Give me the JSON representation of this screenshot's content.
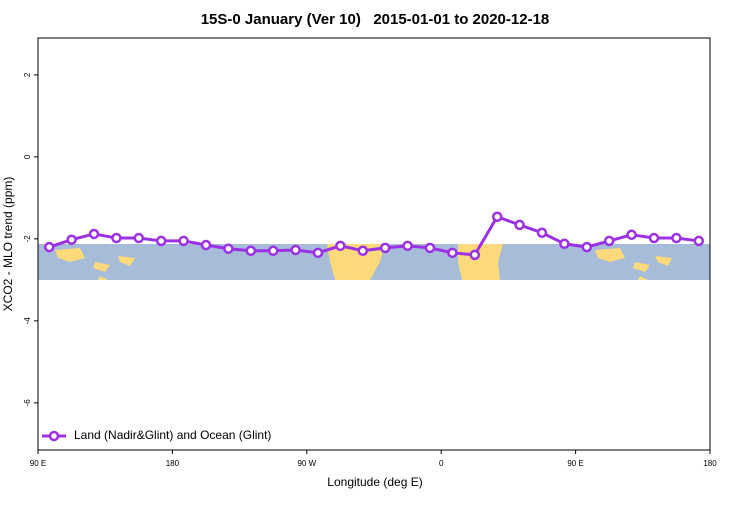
{
  "chart_data": {
    "type": "line",
    "title": "15S-0 January (Ver 10)   2015-01-01 to 2020-12-18",
    "x_label": "Longitude (deg E)",
    "y_label": "XCO2 - MLO trend (ppm)",
    "x": [
      97.5,
      112.5,
      127.5,
      142.5,
      157.5,
      172.5,
      187.5,
      202.5,
      217.5,
      232.5,
      247.5,
      262.5,
      277.5,
      292.5,
      307.5,
      322.5,
      337.5,
      352.5,
      367.5,
      382.5,
      397.5,
      412.5,
      427.5,
      442.5,
      457.5,
      472.5,
      487.5,
      502.5,
      517.5,
      532.5
    ],
    "series": [
      {
        "name": "Land (Nadir&Glint) and Ocean (Glint)",
        "color": "#9b30e6",
        "values": [
          -2.2,
          -2.02,
          -1.88,
          -1.98,
          -1.98,
          -2.05,
          -2.05,
          -2.15,
          -2.24,
          -2.29,
          -2.29,
          -2.27,
          -2.34,
          -2.17,
          -2.29,
          -2.22,
          -2.17,
          -2.22,
          -2.34,
          -2.39,
          -1.46,
          -1.66,
          -1.85,
          -2.12,
          -2.2,
          -2.05,
          -1.9,
          -1.98,
          -1.98,
          -2.05
        ]
      }
    ],
    "xlim": [
      90,
      540
    ],
    "xticks": [
      {
        "value": 90,
        "label": "90 E"
      },
      180,
      {
        "value": 270,
        "label": "90 W"
      },
      {
        "value": 360,
        "label": "0"
      },
      {
        "value": 450,
        "label": "90 E"
      },
      {
        "value": 540,
        "label": "180"
      }
    ],
    "ylim": [
      -7.15,
      2.9
    ],
    "yticks": [
      2,
      0,
      -2,
      -4,
      -6
    ],
    "legend": "bottom-left"
  }
}
